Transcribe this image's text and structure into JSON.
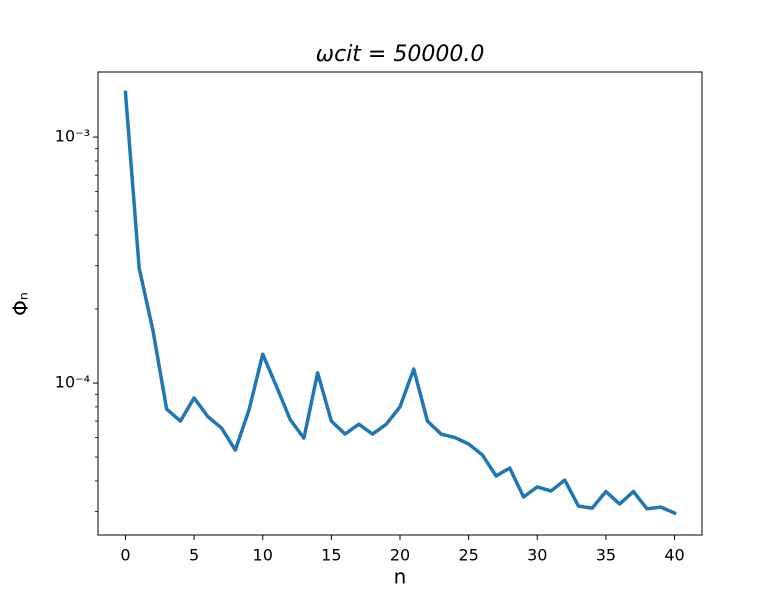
{
  "chart_data": {
    "type": "line",
    "title": "ωcit = 50000.0",
    "xlabel": "n",
    "ylabel": "Φₙ",
    "x": [
      0,
      1,
      2,
      3,
      4,
      5,
      6,
      7,
      8,
      9,
      10,
      11,
      12,
      13,
      14,
      15,
      16,
      17,
      18,
      19,
      20,
      21,
      22,
      23,
      24,
      25,
      26,
      27,
      28,
      29,
      30,
      31,
      32,
      33,
      34,
      35,
      36,
      37,
      38,
      39,
      40
    ],
    "series": [
      {
        "color": "#1f77b4",
        "values": [
          0.00152,
          0.000293,
          0.000164,
          7.84e-05,
          7e-05,
          8.7e-05,
          7.3e-05,
          6.56e-05,
          5.34e-05,
          7.77e-05,
          0.000131,
          9.7e-05,
          7.1e-05,
          5.97e-05,
          0.00011,
          7e-05,
          6.2e-05,
          6.8e-05,
          6.2e-05,
          6.8e-05,
          8e-05,
          0.000114,
          7e-05,
          6.2e-05,
          6e-05,
          5.65e-05,
          5.1e-05,
          4.19e-05,
          4.51e-05,
          3.44e-05,
          3.78e-05,
          3.64e-05,
          4.03e-05,
          3.16e-05,
          3.1e-05,
          3.62e-05,
          3.22e-05,
          3.62e-05,
          3.08e-05,
          3.13e-05,
          2.96e-05
        ]
      }
    ],
    "xlim": [
      -2,
      42
    ],
    "xticks": [
      0,
      5,
      10,
      15,
      20,
      25,
      30,
      35,
      40
    ],
    "ylim": [
      2.41e-05,
      0.00184
    ],
    "yscale": "log",
    "yticks": [
      {
        "value": 0.0001,
        "label": "10⁻⁴"
      },
      {
        "value": 0.001,
        "label": "10⁻³"
      }
    ],
    "yminorticks": [
      3e-05,
      4e-05,
      5e-05,
      6e-05,
      7e-05,
      8e-05,
      9e-05,
      0.0002,
      0.0003,
      0.0004,
      0.0005,
      0.0006,
      0.0007,
      0.0008,
      0.0009
    ],
    "grid": false
  }
}
